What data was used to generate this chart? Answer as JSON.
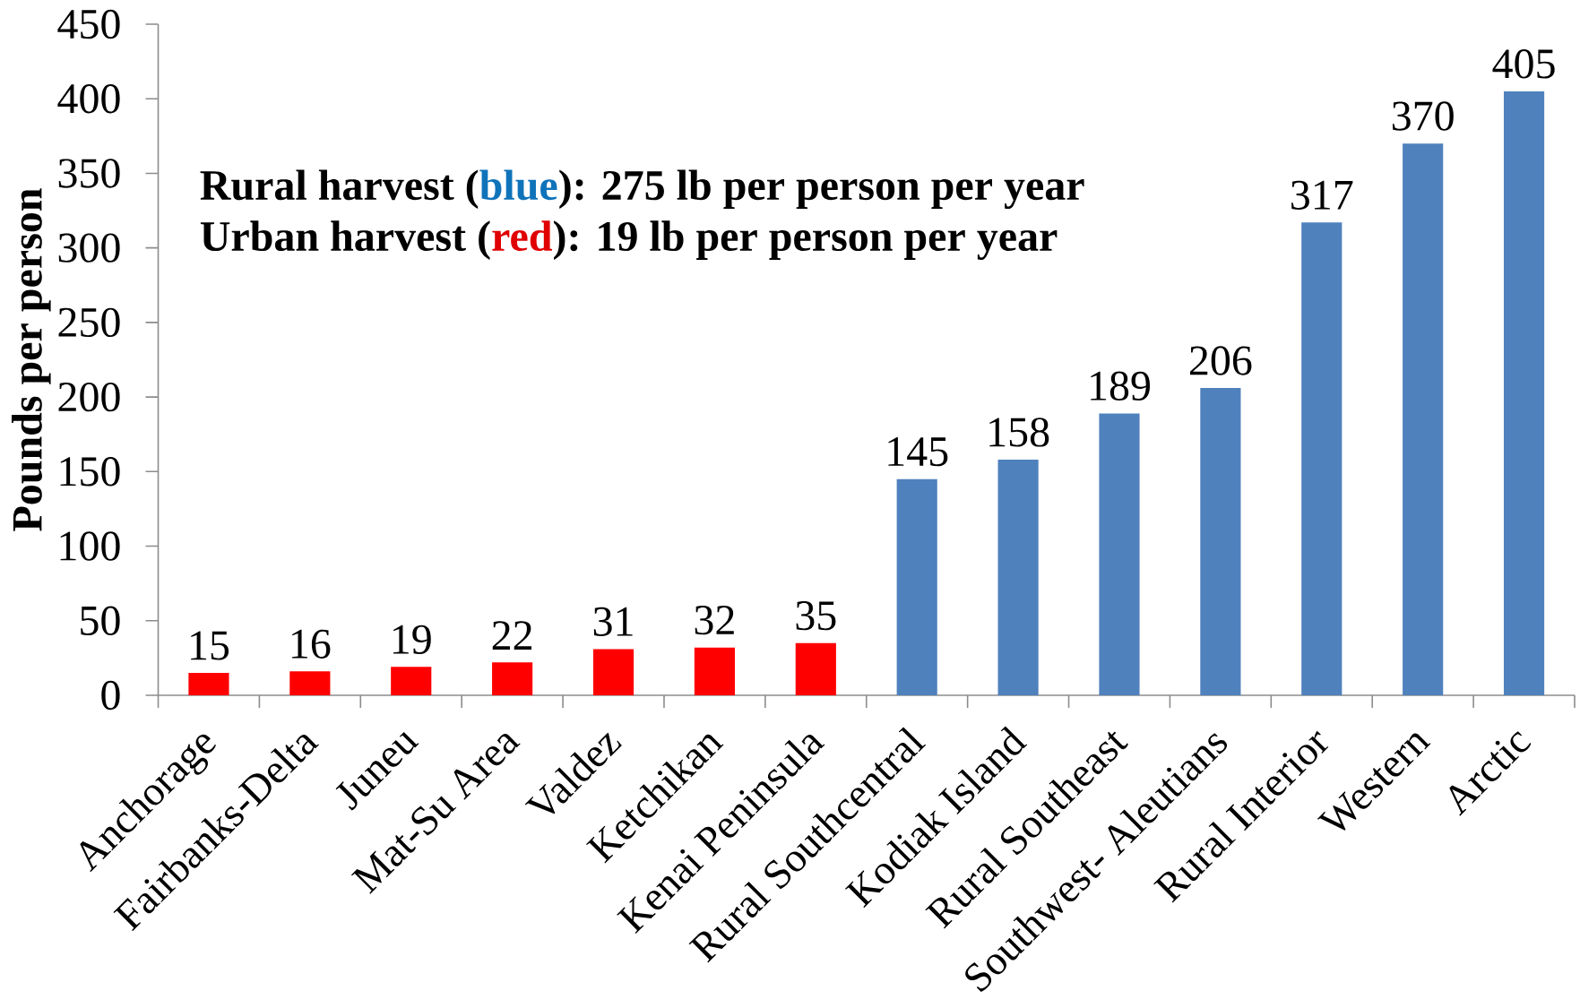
{
  "chart_data": {
    "type": "bar",
    "ylabel": "Pounds per person",
    "annotations": [
      "Rural harvest (",
      "blue",
      "): 275 lb per person per year",
      "Urban harvest (",
      "red",
      "): 19 lb per person per year"
    ],
    "categories": [
      "Anchorage",
      "Fairbanks-Delta",
      "Juneu",
      "Mat-Su Area",
      "Valdez",
      "Ketchikan",
      "Kenai Peninsula",
      "Rural Southcentral",
      "Kodiak Island",
      "Rural Southeast",
      "Southwest- Aleutians",
      "Rural Interior",
      "Western",
      "Arctic"
    ],
    "values": [
      15,
      16,
      19,
      22,
      31,
      32,
      35,
      145,
      158,
      189,
      206,
      317,
      370,
      405
    ],
    "colors": [
      "#ff0000",
      "#ff0000",
      "#ff0000",
      "#ff0000",
      "#ff0000",
      "#ff0000",
      "#ff0000",
      "#4f81bd",
      "#4f81bd",
      "#4f81bd",
      "#4f81bd",
      "#4f81bd",
      "#4f81bd",
      "#4f81bd"
    ],
    "ylim": [
      0,
      450
    ],
    "yticks": [
      0,
      50,
      100,
      150,
      200,
      250,
      300,
      350,
      400,
      450
    ],
    "data_labels": true
  }
}
